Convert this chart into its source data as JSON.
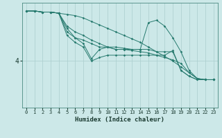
{
  "xlabel": "Humidex (Indice chaleur)",
  "ylabel": "",
  "bg_color": "#cce8e8",
  "line_color": "#267a6e",
  "grid_color": "#aacece",
  "xlim": [
    -0.5,
    23.5
  ],
  "ylim": [
    0,
    9.0
  ],
  "yticks": [
    4
  ],
  "xticks": [
    0,
    1,
    2,
    3,
    4,
    5,
    6,
    7,
    8,
    9,
    10,
    11,
    12,
    13,
    14,
    15,
    16,
    17,
    18,
    19,
    20,
    21,
    22,
    23
  ],
  "series": [
    {
      "x": [
        0,
        1,
        2,
        3,
        4,
        5,
        6,
        7,
        8,
        9,
        10,
        11,
        12,
        13,
        14,
        15,
        16,
        17,
        18,
        19,
        20,
        21,
        22,
        23
      ],
      "y": [
        8.3,
        8.3,
        8.2,
        8.2,
        8.1,
        8.0,
        7.9,
        7.7,
        7.4,
        7.1,
        6.8,
        6.5,
        6.2,
        5.9,
        5.6,
        5.2,
        4.8,
        4.4,
        4.0,
        3.5,
        3.0,
        2.5,
        2.4,
        2.4
      ]
    },
    {
      "x": [
        0,
        1,
        2,
        3,
        4,
        5,
        6,
        7,
        8,
        9,
        10,
        11,
        12,
        13,
        14,
        15,
        16,
        17,
        18,
        19,
        20,
        21,
        22,
        23
      ],
      "y": [
        8.3,
        8.3,
        8.2,
        8.2,
        8.1,
        7.0,
        6.5,
        6.2,
        5.8,
        5.5,
        5.2,
        5.0,
        5.0,
        4.9,
        4.8,
        4.7,
        4.5,
        4.3,
        4.1,
        3.8,
        3.0,
        2.5,
        2.4,
        2.4
      ]
    },
    {
      "x": [
        0,
        1,
        2,
        3,
        4,
        5,
        6,
        7,
        8,
        9,
        10,
        11,
        12,
        13,
        14,
        15,
        16,
        17,
        18,
        19,
        20,
        21,
        22,
        23
      ],
      "y": [
        8.3,
        8.3,
        8.2,
        8.2,
        8.1,
        6.5,
        6.0,
        5.5,
        4.2,
        5.0,
        5.2,
        5.2,
        5.1,
        5.0,
        5.0,
        5.0,
        4.8,
        4.8,
        4.8,
        3.2,
        2.7,
        2.4,
        2.4,
        2.4
      ]
    },
    {
      "x": [
        0,
        1,
        2,
        3,
        4,
        5,
        6,
        7,
        8,
        9,
        10,
        11,
        12,
        13,
        14,
        15,
        16,
        17,
        18,
        19,
        20,
        21,
        22,
        23
      ],
      "y": [
        8.3,
        8.3,
        8.2,
        8.2,
        8.1,
        6.8,
        6.0,
        5.8,
        5.5,
        5.2,
        5.2,
        5.0,
        5.0,
        5.0,
        5.0,
        7.3,
        7.5,
        7.0,
        6.0,
        4.8,
        3.2,
        2.5,
        2.4,
        2.4
      ]
    },
    {
      "x": [
        0,
        1,
        2,
        3,
        4,
        5,
        6,
        7,
        8,
        9,
        10,
        11,
        12,
        13,
        14,
        15,
        16,
        17,
        18,
        19,
        20,
        21,
        22,
        23
      ],
      "y": [
        8.3,
        8.3,
        8.2,
        8.2,
        8.1,
        6.2,
        5.6,
        5.2,
        4.0,
        4.3,
        4.5,
        4.5,
        4.5,
        4.5,
        4.5,
        4.5,
        4.5,
        4.5,
        4.9,
        3.2,
        2.7,
        2.4,
        2.4,
        2.4
      ]
    }
  ]
}
